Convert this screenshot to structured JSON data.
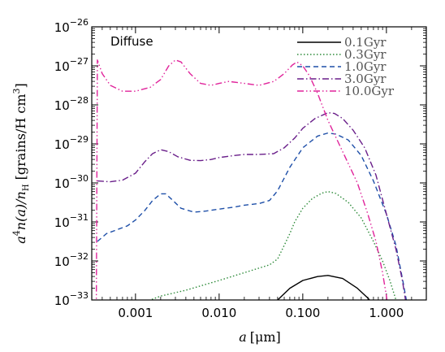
{
  "chart_data": {
    "type": "line",
    "annotation": "Diffuse",
    "xlabel_var": "a",
    "xlabel_unit": "[μm]",
    "ylabel_main": "a",
    "ylabel_sup": "4",
    "ylabel_mid": "n(a)/n",
    "ylabel_sub": "H",
    "ylabel_unit": " [grains/H cm",
    "ylabel_unit_sup": "3",
    "ylabel_unit_end": "]",
    "x_scale": "log",
    "y_scale": "log",
    "xlim": [
      0.0003,
      3.0
    ],
    "ylim": [
      1e-33,
      1e-26
    ],
    "x_ticks": [
      {
        "value": 0.001,
        "label": "0.001"
      },
      {
        "value": 0.01,
        "label": "0.010"
      },
      {
        "value": 0.1,
        "label": "0.100"
      },
      {
        "value": 1.0,
        "label": "1.000"
      }
    ],
    "y_ticks": [
      {
        "exp": -33,
        "label_base": "10",
        "label_exp": "−33"
      },
      {
        "exp": -32,
        "label_base": "10",
        "label_exp": "−32"
      },
      {
        "exp": -31,
        "label_base": "10",
        "label_exp": "−31"
      },
      {
        "exp": -30,
        "label_base": "10",
        "label_exp": "−30"
      },
      {
        "exp": -29,
        "label_base": "10",
        "label_exp": "−29"
      },
      {
        "exp": -28,
        "label_base": "10",
        "label_exp": "−28"
      },
      {
        "exp": -27,
        "label_base": "10",
        "label_exp": "−27"
      },
      {
        "exp": -26,
        "label_base": "10",
        "label_exp": "−26"
      }
    ],
    "legend_position": "top-right",
    "series": [
      {
        "name": "0.1Gyr",
        "color": "#000000",
        "dash": "solid",
        "points": [
          [
            0.04,
            -33.2
          ],
          [
            0.05,
            -33.0
          ],
          [
            0.07,
            -32.7
          ],
          [
            0.1,
            -32.5
          ],
          [
            0.15,
            -32.4
          ],
          [
            0.2,
            -32.37
          ],
          [
            0.3,
            -32.45
          ],
          [
            0.45,
            -32.7
          ],
          [
            0.6,
            -32.95
          ],
          [
            0.75,
            -33.2
          ]
        ]
      },
      {
        "name": "0.3Gyr",
        "color": "#2e8b3a",
        "dash": "dotted",
        "points": [
          [
            0.0012,
            -33.2
          ],
          [
            0.0015,
            -33.0
          ],
          [
            0.002,
            -32.9
          ],
          [
            0.004,
            -32.75
          ],
          [
            0.01,
            -32.5
          ],
          [
            0.02,
            -32.3
          ],
          [
            0.04,
            -32.1
          ],
          [
            0.05,
            -31.95
          ],
          [
            0.06,
            -31.6
          ],
          [
            0.07,
            -31.3
          ],
          [
            0.08,
            -31.0
          ],
          [
            0.1,
            -30.65
          ],
          [
            0.13,
            -30.4
          ],
          [
            0.17,
            -30.26
          ],
          [
            0.2,
            -30.22
          ],
          [
            0.25,
            -30.27
          ],
          [
            0.35,
            -30.5
          ],
          [
            0.5,
            -30.9
          ],
          [
            0.7,
            -31.5
          ],
          [
            0.9,
            -32.0
          ],
          [
            1.1,
            -32.5
          ],
          [
            1.3,
            -33.0
          ],
          [
            1.4,
            -33.2
          ]
        ]
      },
      {
        "name": "1.0Gyr",
        "color": "#1e4fa8",
        "dash": "dashed",
        "points": [
          [
            0.00035,
            -31.5
          ],
          [
            0.00045,
            -31.3
          ],
          [
            0.0006,
            -31.2
          ],
          [
            0.0008,
            -31.1
          ],
          [
            0.001,
            -30.95
          ],
          [
            0.0013,
            -30.7
          ],
          [
            0.0016,
            -30.45
          ],
          [
            0.002,
            -30.28
          ],
          [
            0.0023,
            -30.28
          ],
          [
            0.0028,
            -30.45
          ],
          [
            0.0035,
            -30.65
          ],
          [
            0.005,
            -30.75
          ],
          [
            0.007,
            -30.72
          ],
          [
            0.01,
            -30.67
          ],
          [
            0.015,
            -30.62
          ],
          [
            0.02,
            -30.57
          ],
          [
            0.03,
            -30.53
          ],
          [
            0.04,
            -30.45
          ],
          [
            0.05,
            -30.2
          ],
          [
            0.07,
            -29.6
          ],
          [
            0.1,
            -29.1
          ],
          [
            0.15,
            -28.8
          ],
          [
            0.2,
            -28.72
          ],
          [
            0.25,
            -28.75
          ],
          [
            0.35,
            -28.9
          ],
          [
            0.5,
            -29.3
          ],
          [
            0.7,
            -29.95
          ],
          [
            1.0,
            -30.8
          ],
          [
            1.3,
            -31.6
          ],
          [
            1.6,
            -32.6
          ],
          [
            1.8,
            -33.2
          ]
        ]
      },
      {
        "name": "3.0Gyr",
        "color": "#6a1f8a",
        "dash": "dashdot",
        "points": [
          [
            0.00035,
            -29.95
          ],
          [
            0.0005,
            -29.97
          ],
          [
            0.0007,
            -29.93
          ],
          [
            0.001,
            -29.75
          ],
          [
            0.0013,
            -29.45
          ],
          [
            0.0016,
            -29.25
          ],
          [
            0.002,
            -29.15
          ],
          [
            0.0025,
            -29.2
          ],
          [
            0.0032,
            -29.33
          ],
          [
            0.0045,
            -29.42
          ],
          [
            0.006,
            -29.43
          ],
          [
            0.008,
            -29.4
          ],
          [
            0.01,
            -29.35
          ],
          [
            0.015,
            -29.3
          ],
          [
            0.02,
            -29.27
          ],
          [
            0.03,
            -29.27
          ],
          [
            0.045,
            -29.25
          ],
          [
            0.06,
            -29.1
          ],
          [
            0.08,
            -28.85
          ],
          [
            0.1,
            -28.6
          ],
          [
            0.14,
            -28.35
          ],
          [
            0.2,
            -28.2
          ],
          [
            0.24,
            -28.22
          ],
          [
            0.3,
            -28.35
          ],
          [
            0.4,
            -28.65
          ],
          [
            0.55,
            -29.1
          ],
          [
            0.75,
            -29.8
          ],
          [
            1.0,
            -30.8
          ],
          [
            1.3,
            -31.7
          ],
          [
            1.55,
            -32.5
          ],
          [
            1.75,
            -33.2
          ]
        ]
      },
      {
        "name": "10.0Gyr",
        "color": "#e0249b",
        "dash": "dashdotdot",
        "points": [
          [
            0.00034,
            -33.2
          ],
          [
            0.00035,
            -26.85
          ],
          [
            0.0004,
            -27.2
          ],
          [
            0.0005,
            -27.5
          ],
          [
            0.0007,
            -27.65
          ],
          [
            0.001,
            -27.65
          ],
          [
            0.0015,
            -27.55
          ],
          [
            0.002,
            -27.35
          ],
          [
            0.0025,
            -27.0
          ],
          [
            0.003,
            -26.85
          ],
          [
            0.0035,
            -26.9
          ],
          [
            0.0045,
            -27.2
          ],
          [
            0.006,
            -27.45
          ],
          [
            0.008,
            -27.5
          ],
          [
            0.01,
            -27.45
          ],
          [
            0.013,
            -27.4
          ],
          [
            0.02,
            -27.45
          ],
          [
            0.03,
            -27.5
          ],
          [
            0.045,
            -27.4
          ],
          [
            0.06,
            -27.2
          ],
          [
            0.075,
            -26.98
          ],
          [
            0.085,
            -26.9
          ],
          [
            0.1,
            -27.0
          ],
          [
            0.12,
            -27.25
          ],
          [
            0.15,
            -27.7
          ],
          [
            0.2,
            -28.4
          ],
          [
            0.3,
            -29.2
          ],
          [
            0.45,
            -30.0
          ],
          [
            0.6,
            -30.8
          ],
          [
            0.75,
            -31.5
          ],
          [
            0.9,
            -32.3
          ],
          [
            1.0,
            -32.9
          ],
          [
            1.05,
            -33.2
          ]
        ]
      }
    ]
  }
}
